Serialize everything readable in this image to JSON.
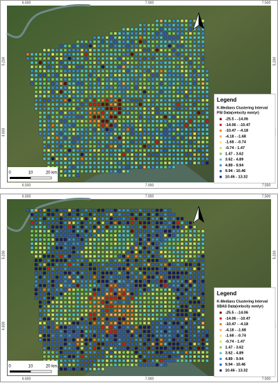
{
  "panels": [
    {
      "x_ticks_top": [
        "6.500",
        "7.000",
        "7.500"
      ],
      "x_ticks_bottom": [
        "6.500",
        "7.000",
        "7.500"
      ],
      "y_ticks_left": [
        "5.200",
        "4.800"
      ],
      "y_ticks_right": [
        "5.200",
        "4.800"
      ],
      "scale_bar": [
        "0",
        "10",
        "20 km"
      ],
      "legend": {
        "title": "Legend",
        "subtitle": "K-Medians Clustering Interval",
        "dataset": "PSI Data(velocity mm/yr)",
        "items": [
          {
            "label": "-25.5 - -14.06",
            "color": "#6b0a0a"
          },
          {
            "label": "-14.06 - -10.47",
            "color": "#d7191c"
          },
          {
            "label": "-10.47 - -4.18",
            "color": "#f07c1e"
          },
          {
            "label": "-4.18 - -1.68",
            "color": "#fdae61"
          },
          {
            "label": "-1.68 - -0.74",
            "color": "#ffe45c"
          },
          {
            "label": "-0.74 - 1.47",
            "color": "#c9e86b"
          },
          {
            "label": "1.47 - 3.62",
            "color": "#7fcf5a"
          },
          {
            "label": "3.62 - 4.89",
            "color": "#4fc3c7"
          },
          {
            "label": "4.89 - 9.94",
            "color": "#3a8fd6"
          },
          {
            "label": "9.94 - 10.46",
            "color": "#2c5fbf"
          },
          {
            "label": "10.46 - 13.32",
            "color": "#141a6e"
          }
        ]
      }
    },
    {
      "x_ticks_top": [
        "6.500",
        "7.000",
        "7.500"
      ],
      "x_ticks_bottom": [
        "6.500",
        "7.000",
        "7.500"
      ],
      "y_ticks_left": [
        "5.200",
        "4.800"
      ],
      "y_ticks_right": [
        "5.200",
        "4.800"
      ],
      "scale_bar": [
        "0",
        "10",
        "20 km"
      ],
      "legend": {
        "title": "Legend",
        "subtitle": "K-Medians Clustering Interval",
        "dataset": "SBAS Data(velocity mm/yr)",
        "items": [
          {
            "label": "-25.5 - -14.06",
            "color": "#6b0a0a"
          },
          {
            "label": "-14.06 - -10.47",
            "color": "#d7191c"
          },
          {
            "label": "-10.47 - -4.18",
            "color": "#f07c1e"
          },
          {
            "label": "-4.18 - -1.68",
            "color": "#fdae61"
          },
          {
            "label": "-1.68 - -0.74",
            "color": "#ffe45c"
          },
          {
            "label": "-0.74 - 1.47",
            "color": "#c9e86b"
          },
          {
            "label": "1.47 - 3.62",
            "color": "#7fcf5a"
          },
          {
            "label": "3.62 - 4.89",
            "color": "#4fc3c7"
          },
          {
            "label": "4.89 - 9.94",
            "color": "#3a8fd6"
          },
          {
            "label": "9.94 - 10.46",
            "color": "#2c5fbf"
          },
          {
            "label": "10.46 - 13.32",
            "color": "#141a6e"
          }
        ]
      }
    }
  ]
}
